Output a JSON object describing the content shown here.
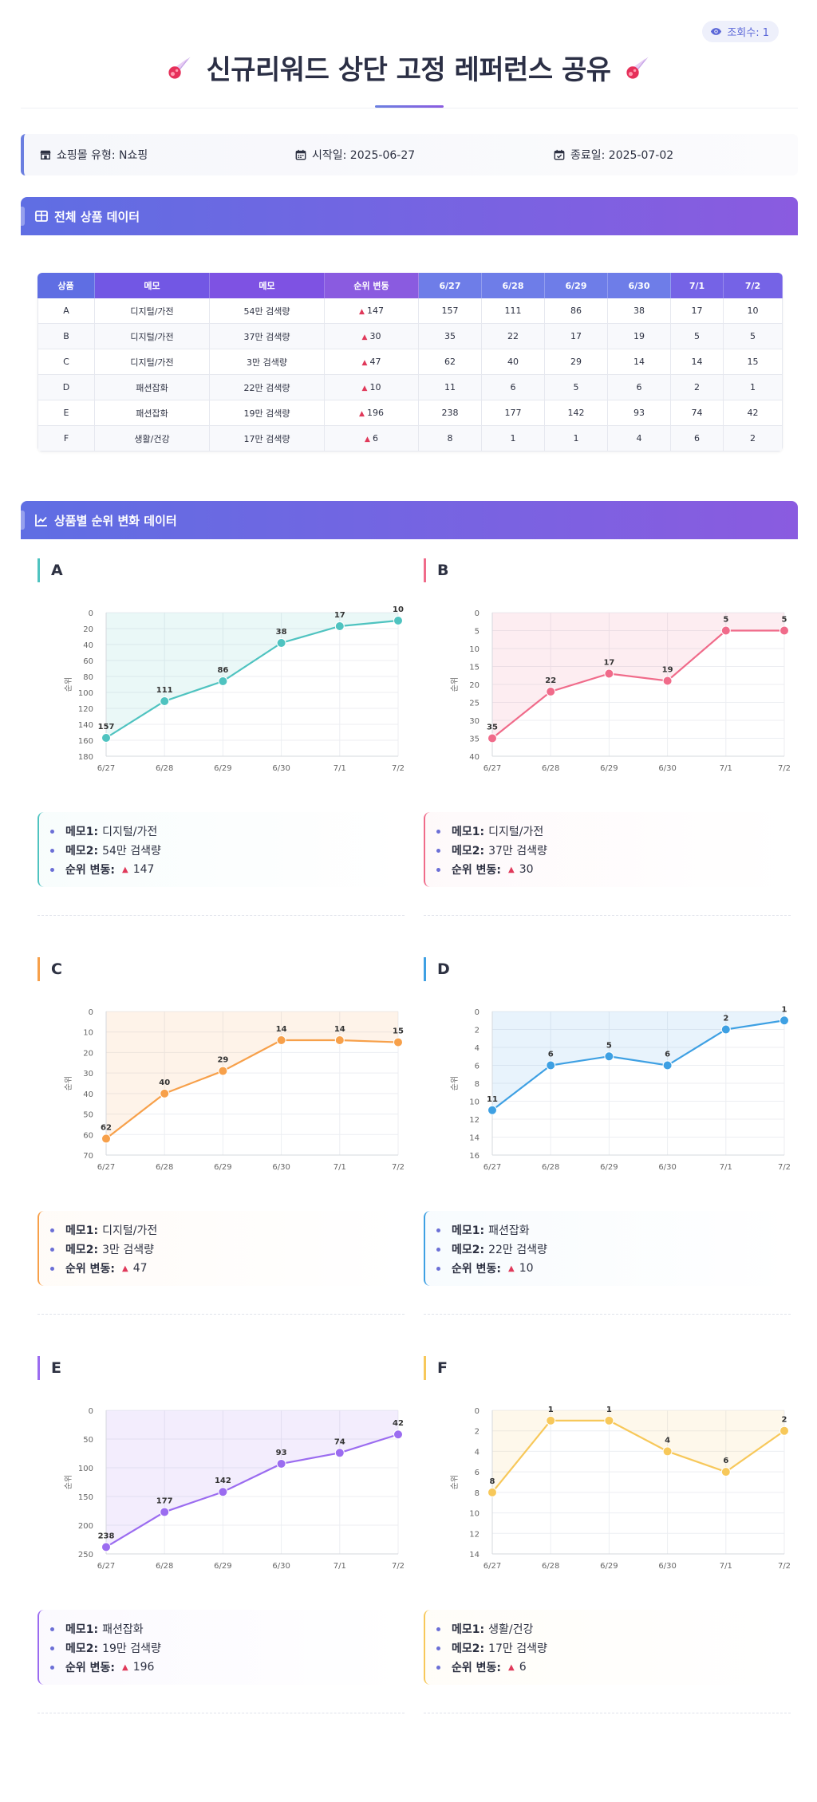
{
  "views": {
    "label": "조회수: 1"
  },
  "title": "신규리워드 상단 고정 레퍼런스 공유",
  "info": {
    "mall": "쇼핑몰 유형: N쇼핑",
    "start": "시작일: 2025-06-27",
    "end": "종료일: 2025-07-02"
  },
  "sections": {
    "table": "전체 상품 데이터",
    "charts": "상품별 순위 변화 데이터"
  },
  "table": {
    "headers": [
      "상품",
      "메모",
      "메모",
      "순위 변동",
      "6/27",
      "6/28",
      "6/29",
      "6/30",
      "7/1",
      "7/2"
    ],
    "rows": [
      [
        "A",
        "디지털/가전",
        "54만 검색량",
        "147",
        "157",
        "111",
        "86",
        "38",
        "17",
        "10"
      ],
      [
        "B",
        "디지털/가전",
        "37만 검색량",
        "30",
        "35",
        "22",
        "17",
        "19",
        "5",
        "5"
      ],
      [
        "C",
        "디지털/가전",
        "3만 검색량",
        "47",
        "62",
        "40",
        "29",
        "14",
        "14",
        "15"
      ],
      [
        "D",
        "패션잡화",
        "22만 검색량",
        "10",
        "11",
        "6",
        "5",
        "6",
        "2",
        "1"
      ],
      [
        "E",
        "패션잡화",
        "19만 검색량",
        "196",
        "238",
        "177",
        "142",
        "93",
        "74",
        "42"
      ],
      [
        "F",
        "생활/건강",
        "17만 검색량",
        "6",
        "8",
        "1",
        "1",
        "4",
        "6",
        "2"
      ]
    ]
  },
  "memo_labels": {
    "memo1": "메모1:",
    "memo2": "메모2:",
    "change": "순위 변동:"
  },
  "colors": {
    "A": "#4fc3c0",
    "B": "#f06b8a",
    "C": "#f7a04a",
    "D": "#3ea0e3",
    "E": "#9b6cf0",
    "F": "#f7c85a",
    "accent": "#6b7fe0",
    "up": "#e0395a"
  },
  "chart_data": [
    {
      "type": "line",
      "name": "A",
      "x": [
        "6/27",
        "6/28",
        "6/29",
        "6/30",
        "7/1",
        "7/2"
      ],
      "y": [
        157,
        111,
        86,
        38,
        17,
        10
      ],
      "ylabel": "순위",
      "ylim": [
        0,
        180
      ],
      "yticks": [
        0,
        20,
        40,
        60,
        80,
        100,
        120,
        140,
        160,
        180
      ],
      "y_inverted": true,
      "memo1": "디지털/가전",
      "memo2": "54만 검색량",
      "change": "147"
    },
    {
      "type": "line",
      "name": "B",
      "x": [
        "6/27",
        "6/28",
        "6/29",
        "6/30",
        "7/1",
        "7/2"
      ],
      "y": [
        35,
        22,
        17,
        19,
        5,
        5
      ],
      "ylabel": "순위",
      "ylim": [
        0,
        40
      ],
      "yticks": [
        0,
        5,
        10,
        15,
        20,
        25,
        30,
        35,
        40
      ],
      "y_inverted": true,
      "memo1": "디지털/가전",
      "memo2": "37만 검색량",
      "change": "30"
    },
    {
      "type": "line",
      "name": "C",
      "x": [
        "6/27",
        "6/28",
        "6/29",
        "6/30",
        "7/1",
        "7/2"
      ],
      "y": [
        62,
        40,
        29,
        14,
        14,
        15
      ],
      "ylabel": "순위",
      "ylim": [
        0,
        70
      ],
      "yticks": [
        0,
        10,
        20,
        30,
        40,
        50,
        60,
        70
      ],
      "y_inverted": true,
      "memo1": "디지털/가전",
      "memo2": "3만 검색량",
      "change": "47"
    },
    {
      "type": "line",
      "name": "D",
      "x": [
        "6/27",
        "6/28",
        "6/29",
        "6/30",
        "7/1",
        "7/2"
      ],
      "y": [
        11,
        6,
        5,
        6,
        2,
        1
      ],
      "ylabel": "순위",
      "ylim": [
        0,
        16
      ],
      "yticks": [
        0,
        2,
        4,
        6,
        8,
        10,
        12,
        14,
        16
      ],
      "y_inverted": true,
      "memo1": "패션잡화",
      "memo2": "22만 검색량",
      "change": "10"
    },
    {
      "type": "line",
      "name": "E",
      "x": [
        "6/27",
        "6/28",
        "6/29",
        "6/30",
        "7/1",
        "7/2"
      ],
      "y": [
        238,
        177,
        142,
        93,
        74,
        42
      ],
      "ylabel": "순위",
      "ylim": [
        0,
        250
      ],
      "yticks": [
        0,
        50,
        100,
        150,
        200,
        250
      ],
      "y_inverted": true,
      "memo1": "패션잡화",
      "memo2": "19만 검색량",
      "change": "196"
    },
    {
      "type": "line",
      "name": "F",
      "x": [
        "6/27",
        "6/28",
        "6/29",
        "6/30",
        "7/1",
        "7/2"
      ],
      "y": [
        8,
        1,
        1,
        4,
        6,
        2
      ],
      "ylabel": "순위",
      "ylim": [
        0,
        14
      ],
      "yticks": [
        0,
        2,
        4,
        6,
        8,
        10,
        12,
        14
      ],
      "y_inverted": true,
      "memo1": "생활/건강",
      "memo2": "17만 검색량",
      "change": "6"
    }
  ]
}
